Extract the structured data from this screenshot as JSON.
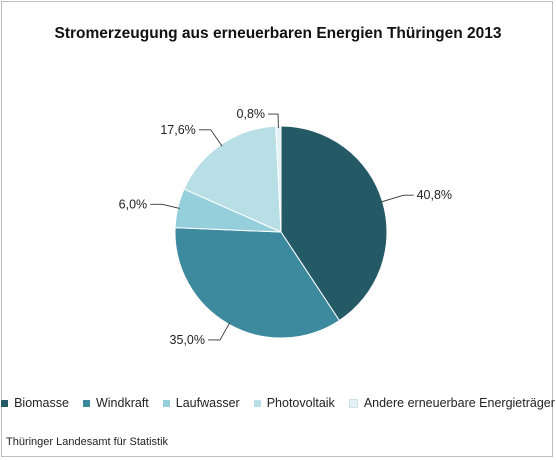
{
  "chart_data": {
    "type": "pie",
    "title": "Stromerzeugung aus erneuerbaren Energien Thüringen 2013",
    "categories": [
      "Biomasse",
      "Windkraft",
      "Laufwasser",
      "Photovoltaik",
      "Andere erneuerbare Energieträger"
    ],
    "values": [
      40.8,
      35.0,
      6.0,
      17.6,
      0.8
    ],
    "value_labels": [
      "40,8%",
      "35,0%",
      "6,0%",
      "17,6%",
      "0,8%"
    ],
    "colors": [
      "#245a66",
      "#3d8a9e",
      "#96cfdc",
      "#b9dfe6",
      "#e4f2f5"
    ],
    "legend_position": "bottom",
    "start_angle_deg": 0,
    "direction": "clockwise"
  },
  "source": "Thüringer Landesamt für Statistik"
}
